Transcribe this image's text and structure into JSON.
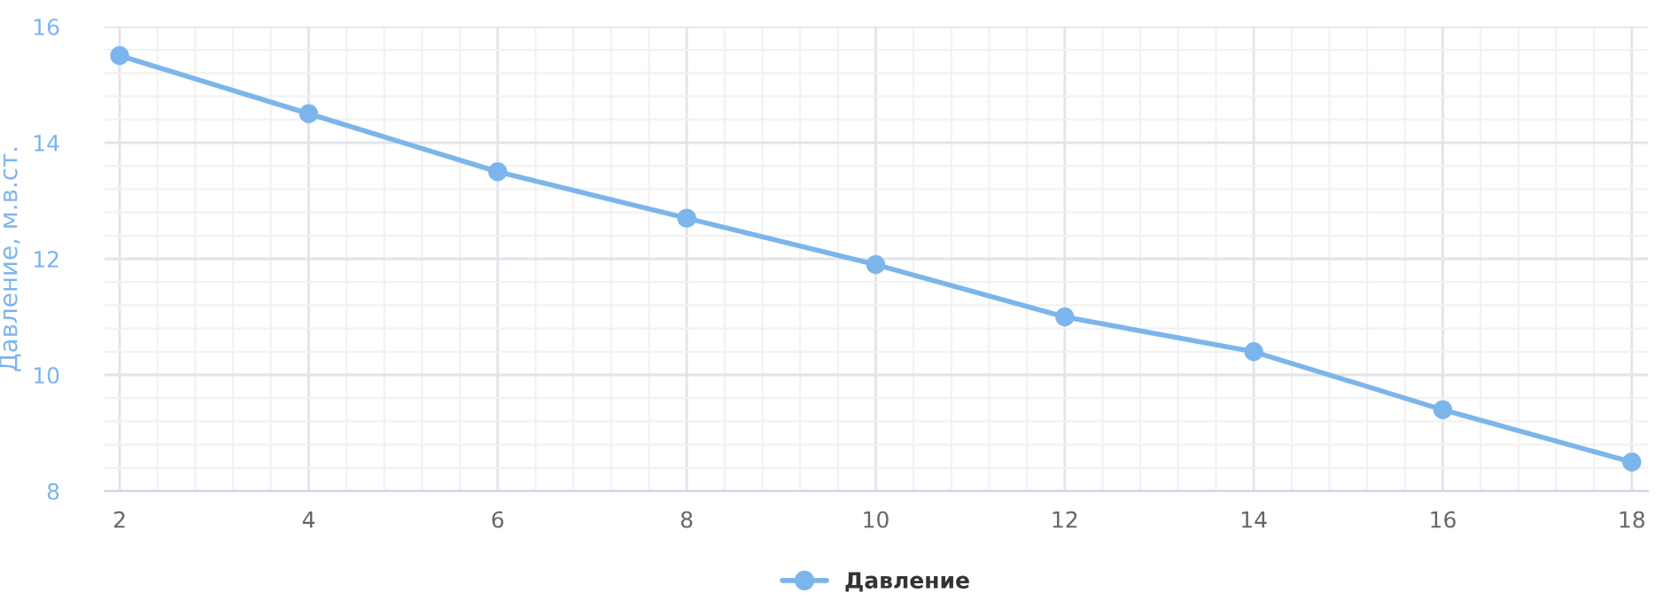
{
  "chart_data": {
    "type": "line",
    "ylabel": "Давление, м.в.ст.",
    "x": [
      2,
      4,
      6,
      8,
      10,
      12,
      14,
      16,
      18
    ],
    "series": [
      {
        "name": "Давление",
        "color": "#7cb5ec",
        "values": [
          15.5,
          14.5,
          13.5,
          12.7,
          11.9,
          11.0,
          10.4,
          9.4,
          8.5
        ]
      }
    ],
    "xlim": [
      1.84,
      18.17
    ],
    "xticks": [
      2,
      4,
      6,
      8,
      10,
      12,
      14,
      16,
      18
    ],
    "ylim": [
      8,
      16
    ],
    "yticks": [
      8,
      10,
      12,
      14,
      16
    ],
    "grid": true,
    "legend": "bottom",
    "marker": "circle",
    "line_style": "solid"
  }
}
